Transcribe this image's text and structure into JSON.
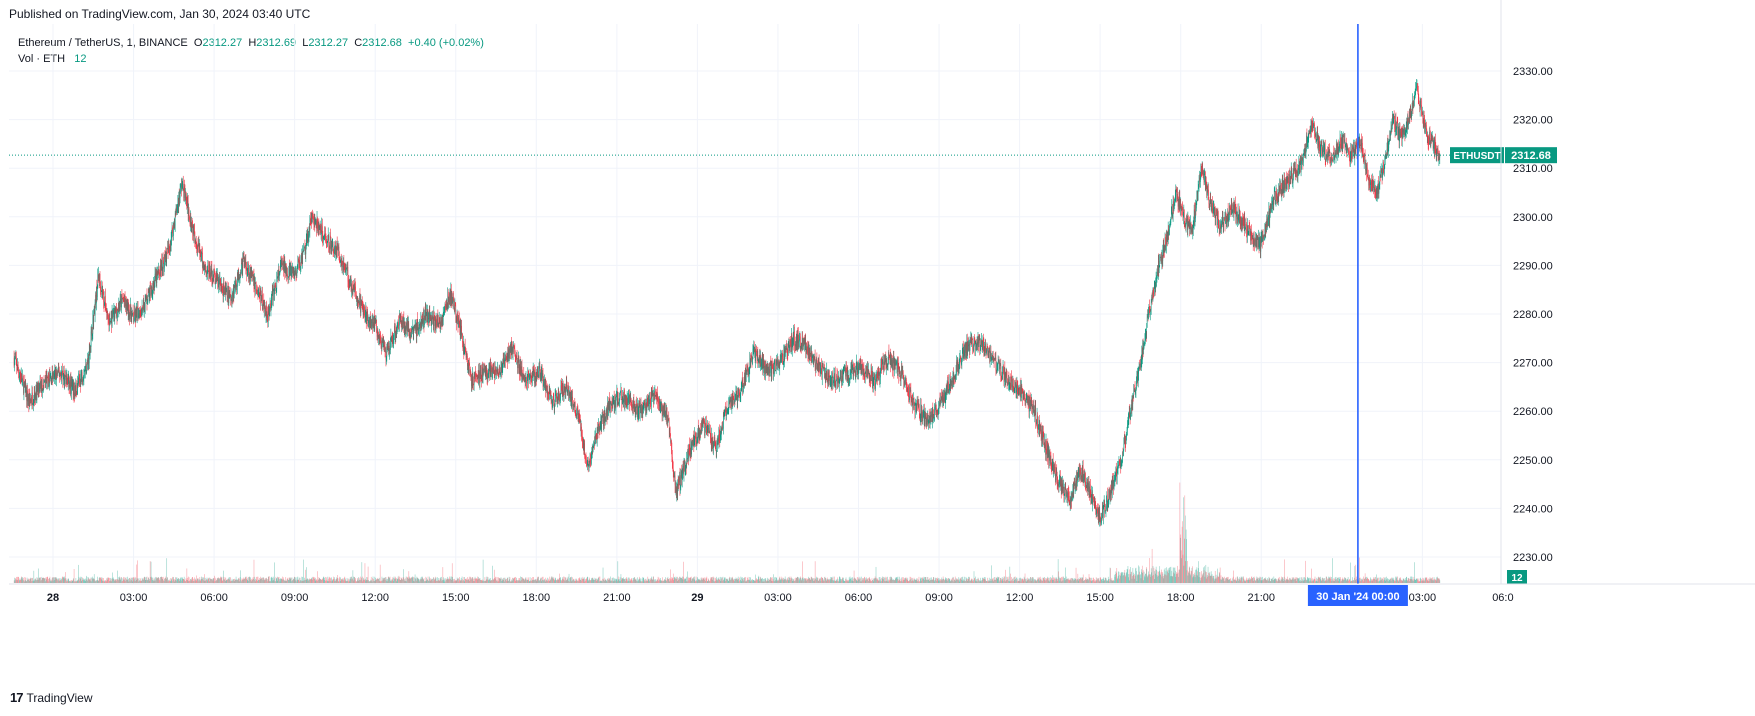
{
  "published": "Published on TradingView.com, Jan 30, 2024 03:40 UTC",
  "footer": {
    "logo": "17",
    "brand": "TradingView"
  },
  "legend": {
    "symbol": "Ethereum / TetherUS, 1, BINANCE",
    "o_label": "O",
    "o": "2312.27",
    "h_label": "H",
    "h": "2312.69",
    "l_label": "L",
    "l": "2312.27",
    "c_label": "C",
    "c": "2312.68",
    "change": "+0.40 (+0.02%)",
    "vol_label": "Vol · ETH",
    "vol_value": "12"
  },
  "colors": {
    "up": "#089981",
    "down": "#f23645",
    "crosshair": "#2962ff",
    "grid": "#f0f3fa",
    "text": "#131722"
  },
  "chart_data": {
    "type": "candlestick",
    "title": "Ethereum / TetherUS, 1, BINANCE",
    "ylim": [
      2226,
      2338
    ],
    "y_ticks": [
      "2230.00",
      "2240.00",
      "2250.00",
      "2260.00",
      "2270.00",
      "2280.00",
      "2290.00",
      "2300.00",
      "2310.00",
      "2320.00",
      "2330.00"
    ],
    "x_ticks": [
      {
        "label": "28",
        "hour": 0,
        "bold": true
      },
      {
        "label": "03:00",
        "hour": 3
      },
      {
        "label": "06:00",
        "hour": 6
      },
      {
        "label": "09:00",
        "hour": 9
      },
      {
        "label": "12:00",
        "hour": 12
      },
      {
        "label": "15:00",
        "hour": 15
      },
      {
        "label": "18:00",
        "hour": 18
      },
      {
        "label": "21:00",
        "hour": 21
      },
      {
        "label": "29",
        "hour": 24,
        "bold": true
      },
      {
        "label": "03:00",
        "hour": 27
      },
      {
        "label": "06:00",
        "hour": 30
      },
      {
        "label": "09:00",
        "hour": 33
      },
      {
        "label": "12:00",
        "hour": 36
      },
      {
        "label": "15:00",
        "hour": 39
      },
      {
        "label": "18:00",
        "hour": 42
      },
      {
        "label": "21:00",
        "hour": 45
      },
      {
        "label": "03:00",
        "hour": 51
      },
      {
        "label": "06:0",
        "hour": 54
      }
    ],
    "x_start_hour": -1.45,
    "x_last_hour": 51.65,
    "price_path": [
      [
        -1.45,
        2271
      ],
      [
        -0.9,
        2262
      ],
      [
        -0.3,
        2266
      ],
      [
        0.3,
        2268
      ],
      [
        0.8,
        2264
      ],
      [
        1.3,
        2270
      ],
      [
        1.7,
        2288
      ],
      [
        2.1,
        2278
      ],
      [
        2.6,
        2283
      ],
      [
        3.0,
        2279
      ],
      [
        3.4,
        2282
      ],
      [
        3.9,
        2288
      ],
      [
        4.3,
        2293
      ],
      [
        4.8,
        2307
      ],
      [
        5.1,
        2300
      ],
      [
        5.6,
        2290
      ],
      [
        6.1,
        2287
      ],
      [
        6.6,
        2283
      ],
      [
        7.1,
        2291
      ],
      [
        7.6,
        2285
      ],
      [
        8.0,
        2280
      ],
      [
        8.5,
        2290
      ],
      [
        9.0,
        2288
      ],
      [
        9.4,
        2293
      ],
      [
        9.6,
        2300
      ],
      [
        10.1,
        2296
      ],
      [
        10.6,
        2293
      ],
      [
        11.2,
        2285
      ],
      [
        11.6,
        2280
      ],
      [
        12.0,
        2278
      ],
      [
        12.4,
        2271
      ],
      [
        12.9,
        2279
      ],
      [
        13.4,
        2276
      ],
      [
        13.9,
        2280
      ],
      [
        14.4,
        2278
      ],
      [
        14.8,
        2284
      ],
      [
        15.2,
        2276
      ],
      [
        15.6,
        2266
      ],
      [
        16.1,
        2268
      ],
      [
        16.6,
        2268
      ],
      [
        17.1,
        2273
      ],
      [
        17.6,
        2266
      ],
      [
        18.1,
        2268
      ],
      [
        18.6,
        2262
      ],
      [
        19.1,
        2265
      ],
      [
        19.6,
        2259
      ],
      [
        19.9,
        2248
      ],
      [
        20.3,
        2256
      ],
      [
        20.8,
        2262
      ],
      [
        21.3,
        2263
      ],
      [
        21.8,
        2260
      ],
      [
        22.4,
        2263
      ],
      [
        22.9,
        2259
      ],
      [
        23.2,
        2243
      ],
      [
        23.7,
        2252
      ],
      [
        24.2,
        2257
      ],
      [
        24.7,
        2253
      ],
      [
        25.1,
        2261
      ],
      [
        25.6,
        2264
      ],
      [
        26.1,
        2272
      ],
      [
        26.6,
        2268
      ],
      [
        27.1,
        2270
      ],
      [
        27.6,
        2275
      ],
      [
        28.1,
        2273
      ],
      [
        28.6,
        2268
      ],
      [
        29.1,
        2266
      ],
      [
        29.6,
        2268
      ],
      [
        30.1,
        2269
      ],
      [
        30.6,
        2266
      ],
      [
        31.1,
        2271
      ],
      [
        31.6,
        2268
      ],
      [
        32.0,
        2262
      ],
      [
        32.6,
        2258
      ],
      [
        33.1,
        2262
      ],
      [
        33.6,
        2268
      ],
      [
        34.1,
        2274
      ],
      [
        34.6,
        2274
      ],
      [
        35.1,
        2270
      ],
      [
        35.6,
        2266
      ],
      [
        36.1,
        2264
      ],
      [
        36.6,
        2259
      ],
      [
        37.0,
        2252
      ],
      [
        37.4,
        2246
      ],
      [
        37.9,
        2242
      ],
      [
        38.3,
        2248
      ],
      [
        38.8,
        2241
      ],
      [
        39.0,
        2238
      ],
      [
        39.4,
        2244
      ],
      [
        39.8,
        2250
      ],
      [
        40.2,
        2262
      ],
      [
        40.5,
        2270
      ],
      [
        40.8,
        2280
      ],
      [
        41.1,
        2288
      ],
      [
        41.5,
        2296
      ],
      [
        41.8,
        2305
      ],
      [
        42.1,
        2300
      ],
      [
        42.4,
        2297
      ],
      [
        42.8,
        2310
      ],
      [
        43.1,
        2303
      ],
      [
        43.5,
        2298
      ],
      [
        43.9,
        2302
      ],
      [
        44.2,
        2300
      ],
      [
        44.6,
        2296
      ],
      [
        45.0,
        2294
      ],
      [
        45.4,
        2303
      ],
      [
        45.8,
        2306
      ],
      [
        46.1,
        2308
      ],
      [
        46.5,
        2311
      ],
      [
        46.9,
        2320
      ],
      [
        47.2,
        2314
      ],
      [
        47.6,
        2312
      ],
      [
        48.0,
        2316
      ],
      [
        48.3,
        2312
      ],
      [
        48.7,
        2315
      ],
      [
        49.0,
        2307
      ],
      [
        49.3,
        2305
      ],
      [
        49.6,
        2311
      ],
      [
        49.9,
        2320
      ],
      [
        50.2,
        2316
      ],
      [
        50.5,
        2320
      ],
      [
        50.8,
        2326
      ],
      [
        51.1,
        2318
      ],
      [
        51.4,
        2315
      ],
      [
        51.65,
        2312.68
      ]
    ],
    "current": {
      "label": "ETHUSDT",
      "price": "2312.68",
      "value": 2312.68
    },
    "crosshair": {
      "hour": 48.6,
      "label": "30 Jan '24   00:00"
    },
    "volume_badge": "12"
  }
}
